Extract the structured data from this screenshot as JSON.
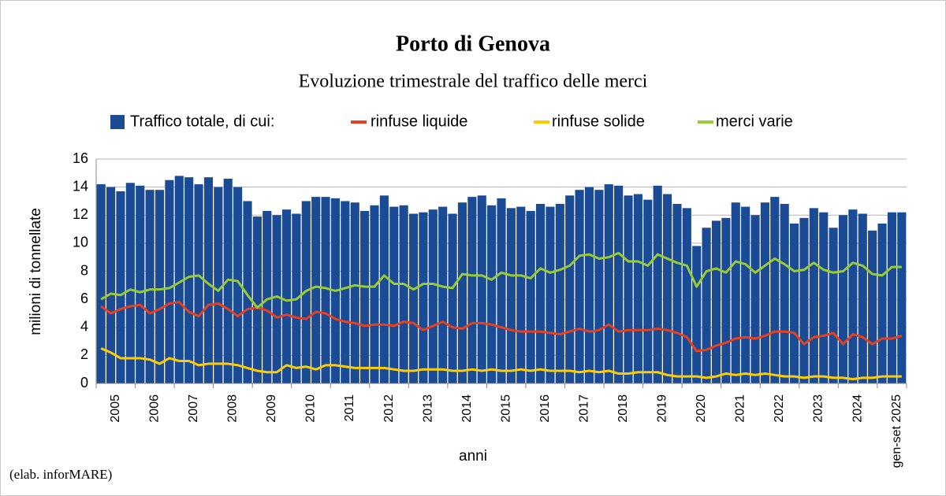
{
  "chart_data": {
    "type": "bar",
    "title": "Porto di Genova",
    "subtitle": "Evoluzione trimestrale del traffico delle merci",
    "y_label": "milioni di tonnellate",
    "x_label": "anni",
    "source": "(elab. inforMARE)",
    "categories": [
      null,
      "2005",
      null,
      null,
      null,
      "2006",
      null,
      null,
      null,
      "2007",
      null,
      null,
      null,
      "2008",
      null,
      null,
      null,
      "2009",
      null,
      null,
      null,
      "2010",
      null,
      null,
      null,
      "2011",
      null,
      null,
      null,
      "2012",
      null,
      null,
      null,
      "2013",
      null,
      null,
      null,
      "2014",
      null,
      null,
      null,
      "2015",
      null,
      null,
      null,
      "2016",
      null,
      null,
      null,
      "2017",
      null,
      null,
      null,
      "2018",
      null,
      null,
      null,
      "2019",
      null,
      null,
      null,
      "2020",
      null,
      null,
      null,
      "2021",
      null,
      null,
      null,
      "2022",
      null,
      null,
      null,
      "2023",
      null,
      null,
      null,
      "2024",
      null,
      null,
      null,
      "gen-set 2025",
      null
    ],
    "ylim": [
      0,
      16
    ],
    "yticks": [
      0,
      2,
      4,
      6,
      8,
      10,
      12,
      14,
      16
    ],
    "grid": true,
    "series": [
      {
        "name": "Traffico totale, di cui:",
        "type": "bar",
        "color": "#1b4b94",
        "values": [
          14.2,
          14.0,
          13.7,
          14.3,
          14.1,
          13.8,
          13.8,
          14.5,
          14.8,
          14.7,
          14.2,
          14.7,
          14.0,
          14.6,
          14.0,
          13.0,
          11.9,
          12.3,
          12.0,
          12.4,
          12.1,
          13.0,
          13.3,
          13.3,
          13.2,
          13.0,
          12.9,
          12.3,
          12.7,
          13.4,
          12.6,
          12.7,
          12.1,
          12.2,
          12.4,
          12.6,
          12.1,
          12.9,
          13.3,
          13.4,
          12.7,
          13.2,
          12.5,
          12.6,
          12.3,
          12.8,
          12.6,
          12.8,
          13.4,
          13.8,
          14.0,
          13.8,
          14.2,
          14.1,
          13.4,
          13.5,
          13.1,
          14.1,
          13.5,
          12.8,
          12.5,
          9.8,
          11.1,
          11.6,
          11.8,
          12.9,
          12.6,
          12.0,
          12.9,
          13.3,
          12.8,
          11.4,
          11.8,
          12.5,
          12.2,
          11.1,
          12.0,
          12.4,
          12.1,
          10.9,
          11.4,
          12.2,
          12.2
        ]
      },
      {
        "name": "rinfuse liquide",
        "type": "line",
        "color": "#e8401c",
        "values": [
          5.5,
          5.0,
          5.3,
          5.5,
          5.6,
          5.0,
          5.3,
          5.7,
          5.8,
          5.1,
          4.8,
          5.6,
          5.7,
          5.3,
          4.8,
          5.3,
          5.4,
          5.2,
          4.7,
          4.9,
          4.7,
          4.6,
          5.1,
          5.0,
          4.6,
          4.4,
          4.3,
          4.1,
          4.2,
          4.2,
          4.1,
          4.4,
          4.3,
          3.8,
          4.1,
          4.4,
          4.0,
          3.9,
          4.3,
          4.3,
          4.2,
          4.0,
          3.8,
          3.7,
          3.7,
          3.7,
          3.6,
          3.5,
          3.7,
          3.9,
          3.7,
          3.8,
          4.2,
          3.7,
          3.8,
          3.8,
          3.8,
          3.9,
          3.8,
          3.6,
          3.3,
          2.3,
          2.4,
          2.7,
          2.9,
          3.2,
          3.3,
          3.2,
          3.4,
          3.7,
          3.7,
          3.6,
          2.8,
          3.3,
          3.4,
          3.6,
          2.8,
          3.5,
          3.3,
          2.8,
          3.2,
          3.2,
          3.4
        ]
      },
      {
        "name": "rinfuse solide",
        "type": "line",
        "color": "#ffcc00",
        "values": [
          2.5,
          2.2,
          1.8,
          1.8,
          1.8,
          1.7,
          1.4,
          1.8,
          1.6,
          1.6,
          1.3,
          1.4,
          1.4,
          1.4,
          1.3,
          1.1,
          0.9,
          0.8,
          0.8,
          1.3,
          1.1,
          1.2,
          1.0,
          1.3,
          1.3,
          1.2,
          1.1,
          1.1,
          1.1,
          1.1,
          1.0,
          0.9,
          0.9,
          1.0,
          1.0,
          1.0,
          0.9,
          0.9,
          1.0,
          0.9,
          1.0,
          0.9,
          0.9,
          1.0,
          0.9,
          1.0,
          0.9,
          0.9,
          0.9,
          0.8,
          0.9,
          0.8,
          0.9,
          0.7,
          0.7,
          0.8,
          0.8,
          0.8,
          0.6,
          0.5,
          0.5,
          0.5,
          0.4,
          0.5,
          0.7,
          0.6,
          0.7,
          0.6,
          0.7,
          0.6,
          0.5,
          0.5,
          0.4,
          0.5,
          0.5,
          0.4,
          0.4,
          0.3,
          0.4,
          0.4,
          0.5,
          0.5,
          0.5
        ]
      },
      {
        "name": "merci varie",
        "type": "line",
        "color": "#99cc33",
        "values": [
          6.0,
          6.4,
          6.3,
          6.7,
          6.5,
          6.7,
          6.7,
          6.8,
          7.2,
          7.6,
          7.7,
          7.1,
          6.6,
          7.4,
          7.3,
          6.3,
          5.4,
          6.0,
          6.2,
          5.9,
          6.0,
          6.6,
          6.9,
          6.8,
          6.6,
          6.8,
          7.0,
          6.9,
          6.9,
          7.7,
          7.1,
          7.1,
          6.7,
          7.1,
          7.1,
          6.9,
          6.8,
          7.8,
          7.7,
          7.7,
          7.4,
          7.9,
          7.7,
          7.7,
          7.5,
          8.2,
          7.9,
          8.1,
          8.4,
          9.1,
          9.2,
          8.9,
          9.0,
          9.3,
          8.7,
          8.7,
          8.4,
          9.2,
          8.9,
          8.6,
          8.4,
          6.9,
          8.0,
          8.2,
          7.9,
          8.7,
          8.5,
          7.9,
          8.4,
          8.9,
          8.5,
          8.0,
          8.1,
          8.6,
          8.1,
          7.9,
          8.0,
          8.6,
          8.4,
          7.8,
          7.7,
          8.3,
          8.3
        ]
      }
    ]
  }
}
